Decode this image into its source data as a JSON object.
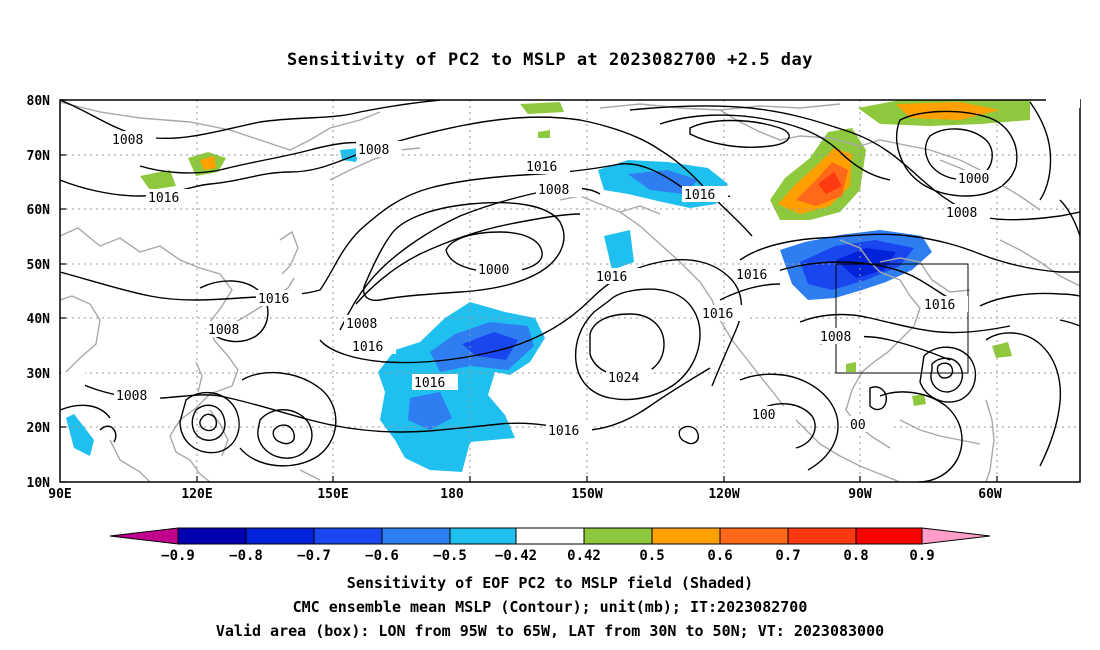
{
  "title": "Sensitivity of PC2 to MSLP at 2023082700 +2.5 day",
  "lat_labels": [
    "80N",
    "70N",
    "60N",
    "50N",
    "40N",
    "30N",
    "20N",
    "10N"
  ],
  "lon_labels": [
    "90E",
    "120E",
    "150E",
    "180",
    "150W",
    "120W",
    "90W",
    "60W"
  ],
  "contour_labels": [
    "1008",
    "1016",
    "1008",
    "1016",
    "1016",
    "1008",
    "1000",
    "1016",
    "1008",
    "1016",
    "1024",
    "1016",
    "1016",
    "1016",
    "1016",
    "1008",
    "1008",
    "1000",
    "1008",
    "1016",
    "1016",
    "1008",
    "100",
    "00"
  ],
  "colorbar": {
    "labels": [
      "−0.9",
      "−0.8",
      "−0.7",
      "−0.6",
      "−0.5",
      "−0.42",
      "0.42",
      "0.5",
      "0.6",
      "0.7",
      "0.8",
      "0.9"
    ],
    "colors": [
      "#c0008c",
      "#0000b0",
      "#0022d8",
      "#1a46f0",
      "#2e7ef2",
      "#1fc0f0",
      "#ffffff",
      "#8ec83c",
      "#ffa000",
      "#ff6a1a",
      "#ff3a10",
      "#ff0000",
      "#ff9ec8"
    ]
  },
  "captions": {
    "line1": "Sensitivity of EOF PC2 to MSLP field (Shaded)",
    "line2": "CMC ensemble mean MSLP (Contour); unit(mb); IT:2023082700",
    "line3": "Valid area (box): LON from 95W to 65W, LAT from 30N to 50N; VT: 2023083000"
  }
}
